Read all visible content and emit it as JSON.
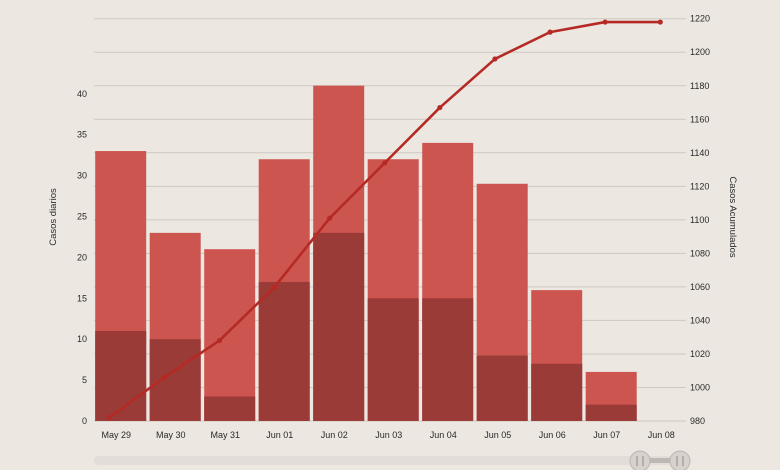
{
  "chart_data": {
    "type": "bar",
    "categories": [
      "May 29",
      "May 30",
      "May 31",
      "Jun 01",
      "Jun 02",
      "Jun 03",
      "Jun 04",
      "Jun 05",
      "Jun 06",
      "Jun 07",
      "Jun 08"
    ],
    "series": [
      {
        "values": [
          33,
          23,
          21,
          32,
          41,
          32,
          34,
          29,
          16,
          6,
          null
        ],
        "color": "#cd5550"
      },
      {
        "values": [
          11,
          10,
          3,
          17,
          23,
          15,
          15,
          8,
          7,
          2,
          null
        ],
        "color": "#9a3b38"
      },
      {
        "type": "line",
        "axis": "right",
        "values": [
          982,
          1006,
          1028,
          1060,
          1101,
          1134,
          1167,
          1196,
          1212,
          1218,
          1218
        ],
        "color": "#b52a24"
      }
    ],
    "ylabel": "Casos diarios",
    "ylabel_right": "Casos Acumulados",
    "ylim": [
      0,
      50
    ],
    "yticks": [
      0,
      5,
      10,
      15,
      20,
      25,
      30,
      35,
      40
    ],
    "ylim_right": [
      980,
      1224
    ],
    "yticks_right": [
      980,
      1000,
      1020,
      1040,
      1060,
      1080,
      1100,
      1120,
      1140,
      1160,
      1180,
      1200,
      1220
    ],
    "grid": true,
    "scrollbar": {
      "visible_fraction": 1.0
    }
  }
}
